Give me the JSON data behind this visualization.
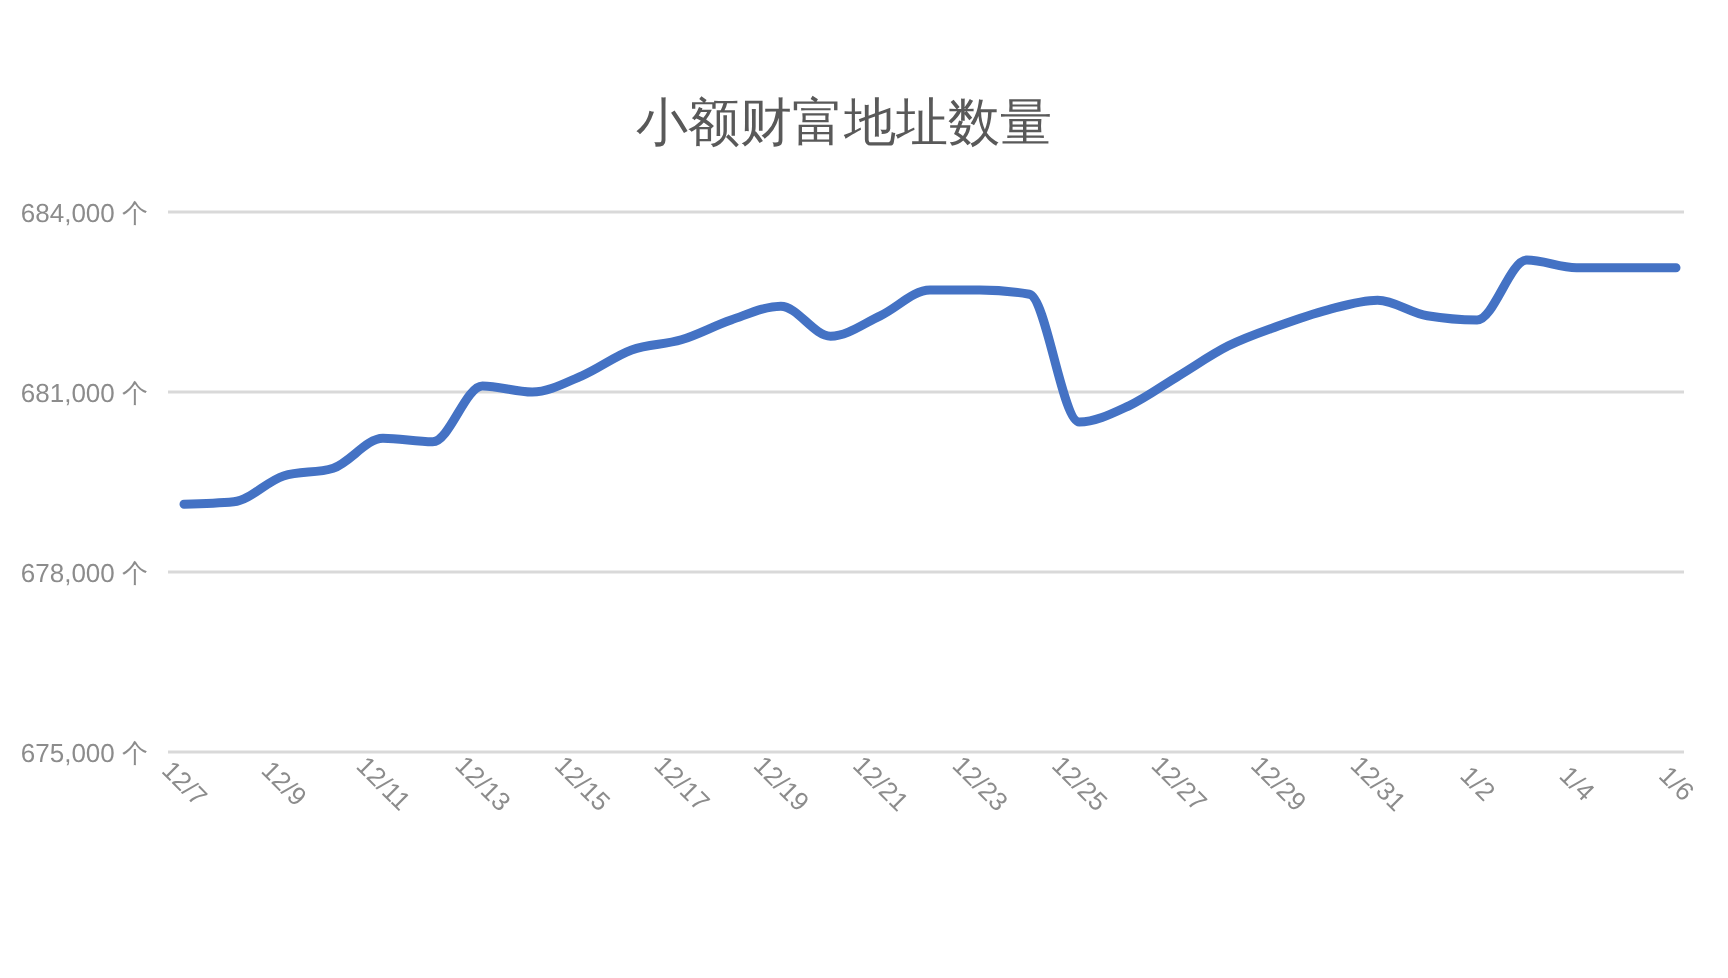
{
  "chart_data": {
    "type": "line",
    "title": "小额财富地址数量",
    "categories": [
      "12/7",
      null,
      "12/9",
      null,
      "12/11",
      null,
      "12/13",
      null,
      "12/15",
      null,
      "12/17",
      null,
      "12/19",
      null,
      "12/21",
      null,
      "12/23",
      null,
      "12/25",
      null,
      "12/27",
      null,
      "12/29",
      null,
      "12/31",
      null,
      "1/2",
      null,
      "1/4",
      null,
      "1/6"
    ],
    "series": [
      {
        "color": "#4472c4",
        "values": [
          679130,
          679170,
          679600,
          679730,
          680230,
          680170,
          681100,
          681000,
          681270,
          681700,
          681870,
          682200,
          682430,
          681930,
          682270,
          682700,
          682700,
          682630,
          680500,
          680770,
          681270,
          681770,
          682100,
          682370,
          682530,
          682270,
          682200,
          683200,
          683070,
          683070,
          683070
        ]
      }
    ],
    "ylim": [
      675000,
      684000
    ],
    "yticks": [
      {
        "value": 675000,
        "label": "675,000 个"
      },
      {
        "value": 678000,
        "label": "678,000 个"
      },
      {
        "value": 681000,
        "label": "681,000 个"
      },
      {
        "value": 684000,
        "label": "684,000 个"
      }
    ],
    "grid": "y",
    "marker": "none",
    "line_style": "solid"
  }
}
